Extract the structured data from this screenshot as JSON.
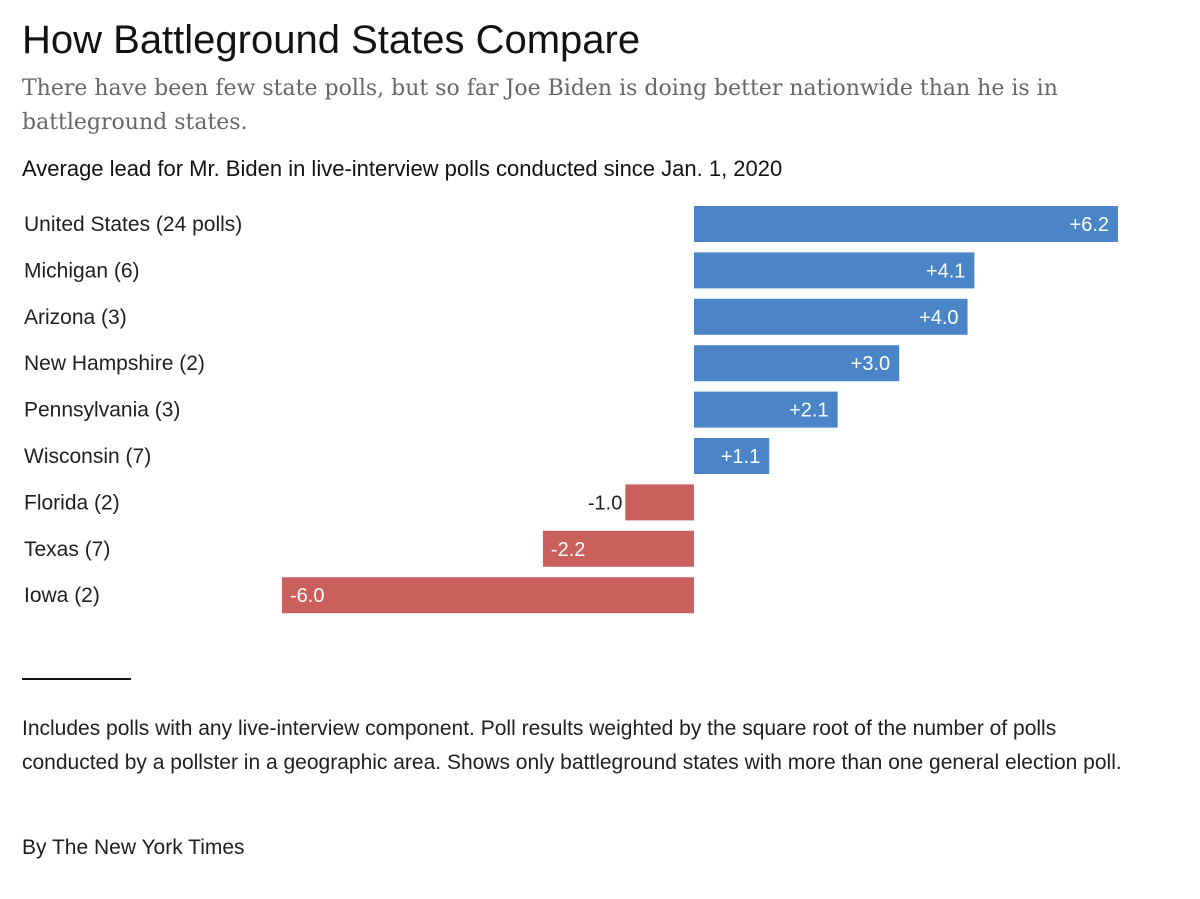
{
  "header": {
    "title": "How Battleground States Compare",
    "subtitle": "There have been few state polls, but so far Joe Biden is doing better nationwide than he is in battleground states."
  },
  "chart_data": {
    "type": "bar",
    "orientation": "horizontal",
    "title": "Average lead for Mr. Biden in live-interview polls conducted since Jan. 1, 2020",
    "categories": [
      "United States (24 polls)",
      "Michigan (6)",
      "Arizona (3)",
      "New Hampshire (2)",
      "Pennsylvania (3)",
      "Wisconsin (7)",
      "Florida (2)",
      "Texas (7)",
      "Iowa (2)"
    ],
    "values": [
      6.2,
      4.1,
      4.0,
      3.0,
      2.1,
      1.1,
      -1.0,
      -2.2,
      -6.0
    ],
    "value_labels": [
      "+6.2",
      "+4.1",
      "+4.0",
      "+3.0",
      "+2.1",
      "+1.1",
      "-1.0",
      "-2.2",
      "-6.0"
    ],
    "xlim": [
      -6.0,
      6.2
    ],
    "grid": false,
    "colors": {
      "positive": "#4a86c7",
      "negative": "#c9605c"
    }
  },
  "footer": {
    "note": "Includes polls with any live-interview component. Poll results weighted by the square root of the number of polls conducted by a pollster in a geographic area. Shows only battleground states with more than one general election poll.",
    "credit": "By The New York Times"
  }
}
